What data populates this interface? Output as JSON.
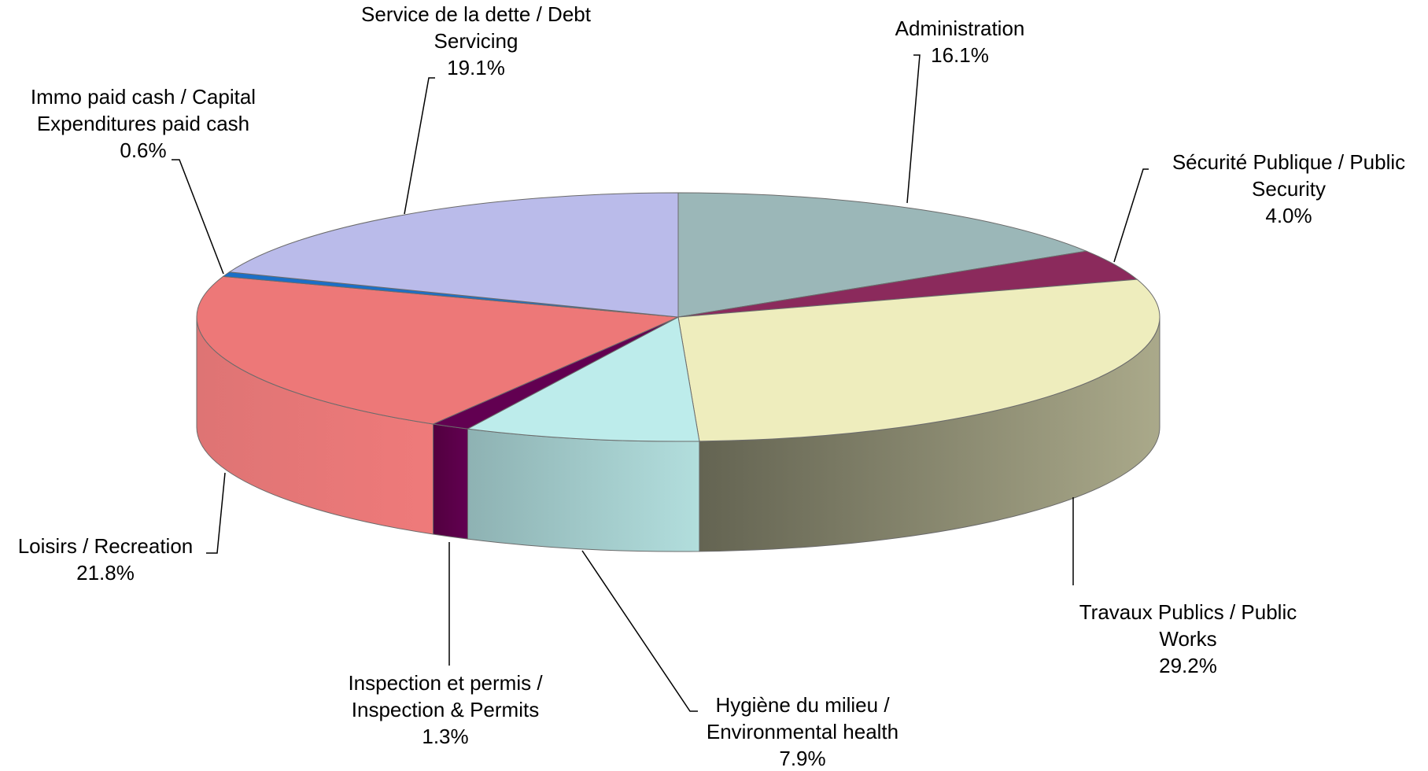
{
  "chart_data": {
    "type": "pie",
    "style": "3d-exploded-none",
    "legend": "none",
    "slices": [
      {
        "name_line1": "Administration",
        "name_line2": "",
        "pct_label": "16.1%",
        "value": 16.1,
        "color": "#9bb7b8",
        "side_dark": "#7f9c9d",
        "side_light": "#a9c5c6"
      },
      {
        "name_line1": "Sécurité Publique / Public",
        "name_line2": "Security",
        "pct_label": "4.0%",
        "value": 4.0,
        "color": "#8b2a5c",
        "side_dark": "#6a1f45",
        "side_light": "#9a3a6a"
      },
      {
        "name_line1": "Travaux Publics / Public",
        "name_line2": "Works",
        "pct_label": "29.2%",
        "value": 29.2,
        "color": "#eeedbd",
        "side_dark": "#646452",
        "side_light": "#aaa98a"
      },
      {
        "name_line1": "Hygiène du milieu /",
        "name_line2": "Environmental health",
        "pct_label": "7.9%",
        "value": 7.9,
        "color": "#bdeceb",
        "side_dark": "#8eb2b3",
        "side_light": "#b2dedd"
      },
      {
        "name_line1": "Inspection et permis /",
        "name_line2": "Inspection & Permits",
        "pct_label": "1.3%",
        "value": 1.3,
        "color": "#620051",
        "side_dark": "#52003f",
        "side_light": "#620051"
      },
      {
        "name_line1": "Loisirs / Recreation",
        "name_line2": "",
        "pct_label": "21.8%",
        "value": 21.8,
        "color": "#ed7878",
        "side_dark": "#de7474",
        "side_light": "#ef7a7a"
      },
      {
        "name_line1": "Immo paid cash / Capital",
        "name_line2": "Expenditures paid cash",
        "pct_label": "0.6%",
        "value": 0.6,
        "color": "#1b6fc7",
        "side_dark": "#1b6fc7",
        "side_light": "#1b6fc7"
      },
      {
        "name_line1": "Service de la dette / Debt",
        "name_line2": "Servicing",
        "pct_label": "19.1%",
        "value": 19.1,
        "color": "#babbea",
        "side_dark": "#9a9bcc",
        "side_light": "#babbea"
      }
    ]
  }
}
